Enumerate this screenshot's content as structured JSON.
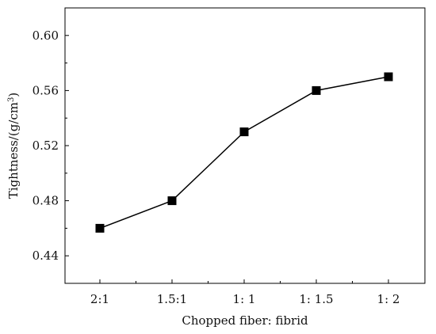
{
  "chart_data": {
    "type": "line",
    "categories": [
      "2:1",
      "1.5:1",
      "1: 1",
      "1: 1.5",
      "1: 2"
    ],
    "values": [
      0.46,
      0.48,
      0.53,
      0.56,
      0.57
    ],
    "xlabel": "Chopped fiber: fibrid",
    "ylabel": "Tightness/(g/cm",
    "ylabel_superscript": "3",
    "ylabel_suffix": ")",
    "ylim": [
      0.42,
      0.62
    ],
    "yticks": [
      "0.44",
      "0.48",
      "0.52",
      "0.56",
      "0.60"
    ],
    "ytick_values": [
      0.44,
      0.48,
      0.52,
      0.56,
      0.6
    ],
    "grid": false,
    "marker": "square",
    "color": "#000000"
  }
}
